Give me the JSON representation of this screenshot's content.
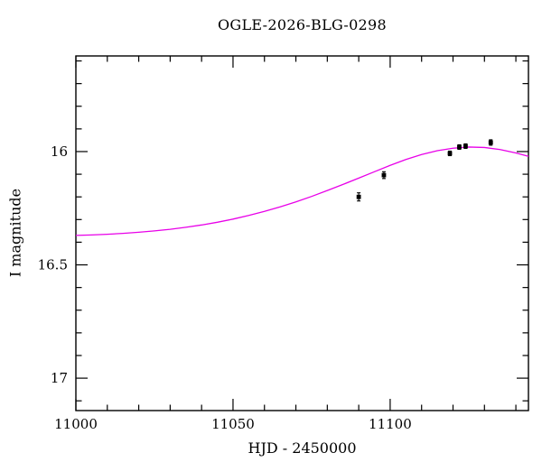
{
  "chart_data": {
    "type": "line",
    "title": "OGLE-2026-BLG-0298",
    "xlabel": "HJD - 2450000",
    "ylabel": "I magnitude",
    "xlim": [
      11000,
      11144
    ],
    "ylim": [
      15.578,
      17.143
    ],
    "y_axis_inverted_magnitude": true,
    "grid": false,
    "legend": "none",
    "x_major_ticks": [
      11000,
      11050,
      11100
    ],
    "x_tick_labels": [
      "11000",
      "11050",
      "11100"
    ],
    "x_minor_step": 10,
    "y_major_ticks": [
      16.0,
      16.5,
      17.0
    ],
    "y_tick_labels": [
      "16",
      "16.5",
      "17"
    ],
    "y_minor_step": 0.1,
    "frame_color": "#000000",
    "model_color": "#e800e8",
    "point_color": "#000000",
    "series": [
      {
        "name": "microlensing-model",
        "type": "line",
        "x": [
          11000,
          11005,
          11010,
          11015,
          11020,
          11025,
          11030,
          11035,
          11040,
          11045,
          11050,
          11055,
          11060,
          11065,
          11070,
          11075,
          11080,
          11085,
          11090,
          11095,
          11100,
          11105,
          11110,
          11115,
          11120,
          11125,
          11130,
          11135,
          11140,
          11144
        ],
        "y": [
          16.37,
          16.368,
          16.365,
          16.361,
          16.356,
          16.35,
          16.343,
          16.334,
          16.324,
          16.312,
          16.298,
          16.282,
          16.264,
          16.244,
          16.222,
          16.198,
          16.172,
          16.145,
          16.117,
          16.089,
          16.061,
          16.035,
          16.013,
          15.996,
          15.985,
          15.98,
          15.982,
          15.991,
          16.006,
          16.021
        ]
      },
      {
        "name": "observed-points",
        "type": "scatter",
        "points": [
          {
            "t": 11090,
            "mag": 16.2,
            "err": 0.018
          },
          {
            "t": 11098,
            "mag": 16.104,
            "err": 0.015
          },
          {
            "t": 11119,
            "mag": 16.008,
            "err": 0.01
          },
          {
            "t": 11122,
            "mag": 15.98,
            "err": 0.01
          },
          {
            "t": 11124,
            "mag": 15.976,
            "err": 0.01
          },
          {
            "t": 11132,
            "mag": 15.96,
            "err": 0.012
          }
        ]
      }
    ]
  }
}
